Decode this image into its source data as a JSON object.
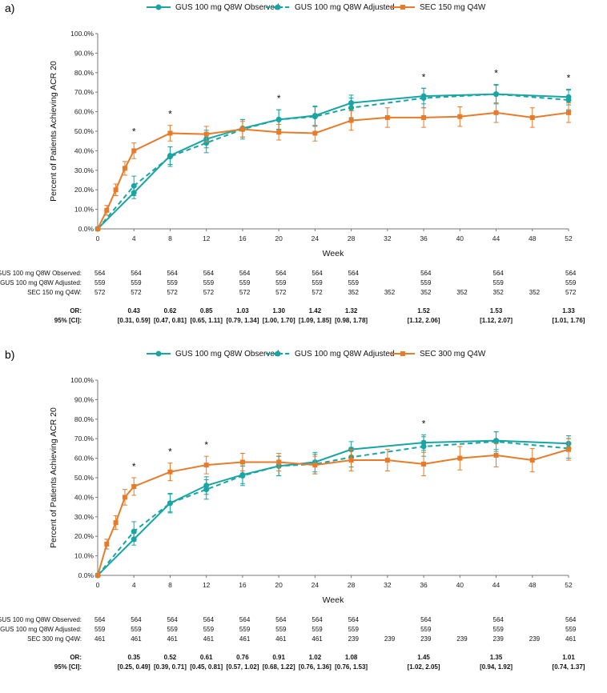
{
  "panels": [
    {
      "letter": "a)",
      "legend": [
        {
          "label": "GUS 100 mg Q8W Observed"
        },
        {
          "label": "GUS 100 mg Q8W Adjusted"
        },
        {
          "label": "SEC 150 mg Q4W"
        }
      ],
      "table_labels": [
        "GUS 100 mg Q8W Observed:",
        "GUS 100 mg Q8W Adjusted:",
        "SEC 150 mg Q4W:"
      ],
      "or_label": "OR:",
      "ci_label": "95% [CI]:",
      "table": {
        "gus_obs_n": [
          "564",
          "564",
          "564",
          "564",
          "564",
          "564",
          "564",
          "564",
          "",
          "564",
          "",
          "564",
          "",
          "564"
        ],
        "gus_adj_n": [
          "559",
          "559",
          "559",
          "559",
          "559",
          "559",
          "559",
          "559",
          "",
          "559",
          "",
          "559",
          "",
          "559"
        ],
        "sec_n": [
          "572",
          "572",
          "572",
          "572",
          "572",
          "572",
          "572",
          "352",
          "352",
          "352",
          "352",
          "352",
          "352",
          "572"
        ],
        "or": [
          "",
          "0.43",
          "0.62",
          "0.85",
          "1.03",
          "1.30",
          "1.42",
          "1.32",
          "",
          "1.52",
          "",
          "1.53",
          "",
          "1.33"
        ],
        "ci": [
          "",
          "[0.31, 0.59]",
          "[0.47, 0.81]",
          "[0.65, 1.11]",
          "[0.79, 1.34]",
          "[1.00, 1.70]",
          "[1.09, 1.85]",
          "[0.98, 1.78]",
          "",
          "[1.12, 2.06]",
          "",
          "[1.12, 2.07]",
          "",
          "[1.01, 1.76]"
        ]
      }
    },
    {
      "letter": "b)",
      "legend": [
        {
          "label": "GUS 100 mg Q8W Observed"
        },
        {
          "label": "GUS 100 mg Q8W Adjusted"
        },
        {
          "label": "SEC 300 mg Q4W"
        }
      ],
      "table_labels": [
        "GUS 100 mg Q8W Observed:",
        "GUS 100 mg Q8W Adjusted:",
        "SEC 300 mg Q4W:"
      ],
      "or_label": "OR:",
      "ci_label": "95% [CI]:",
      "table": {
        "gus_obs_n": [
          "564",
          "564",
          "564",
          "564",
          "564",
          "564",
          "564",
          "564",
          "",
          "564",
          "",
          "564",
          "",
          "564"
        ],
        "gus_adj_n": [
          "559",
          "559",
          "559",
          "559",
          "559",
          "559",
          "559",
          "559",
          "",
          "559",
          "",
          "559",
          "",
          "559"
        ],
        "sec_n": [
          "461",
          "461",
          "461",
          "461",
          "461",
          "461",
          "461",
          "239",
          "239",
          "239",
          "239",
          "239",
          "239",
          "461"
        ],
        "or": [
          "",
          "0.35",
          "0.52",
          "0.61",
          "0.76",
          "0.91",
          "1.02",
          "1.08",
          "",
          "1.45",
          "",
          "1.35",
          "",
          "1.01"
        ],
        "ci": [
          "",
          "[0.25, 0.49]",
          "[0.39, 0.71]",
          "[0.45, 0.81]",
          "[0.57, 1.02]",
          "[0.68, 1.22]",
          "[0.76, 1.36]",
          "[0.76, 1.53]",
          "",
          "[1.02, 2.05]",
          "",
          "[0.94, 1.92]",
          "",
          "[0.74, 1.37]"
        ]
      }
    }
  ],
  "chart_data": [
    {
      "type": "line",
      "xlabel": "Week",
      "ylabel": "Percent of Patients Achieving ACR 20",
      "xlim": [
        0,
        52
      ],
      "x_ticks": [
        0,
        4,
        8,
        12,
        16,
        20,
        24,
        28,
        32,
        36,
        40,
        44,
        48,
        52
      ],
      "y_ticks": [
        "0.0%",
        "10.0%",
        "20.0%",
        "30.0%",
        "40.0%",
        "50.0%",
        "60.0%",
        "70.0%",
        "80.0%",
        "90.0%",
        "100.0%"
      ],
      "ylim": [
        0,
        100
      ],
      "significance_weeks": [
        4,
        8,
        20,
        36,
        44,
        52
      ],
      "series": [
        {
          "name": "GUS 100 mg Q8W Observed",
          "color": "#1aa5a5",
          "dash": false,
          "x": [
            0,
            4,
            8,
            12,
            16,
            20,
            24,
            28,
            36,
            44,
            52
          ],
          "y": [
            0,
            18.5,
            37.5,
            46,
            51.5,
            56,
            58,
            64.5,
            68,
            69,
            67.5
          ],
          "err": [
            0,
            3,
            4.5,
            4.5,
            4.5,
            5,
            5,
            4,
            4,
            4.5,
            4
          ]
        },
        {
          "name": "GUS 100 mg Q8W Adjusted",
          "color": "#1aa5a5",
          "dash": true,
          "x": [
            0,
            4,
            8,
            12,
            16,
            20,
            24,
            28,
            36,
            44,
            52
          ],
          "y": [
            0,
            22,
            37,
            44,
            51,
            56,
            57.5,
            62,
            67,
            69,
            66
          ],
          "err": [
            0,
            5,
            5,
            5,
            5,
            5,
            5,
            5,
            5,
            5,
            5
          ]
        },
        {
          "name": "SEC 150 mg Q4W",
          "color": "#e87b2a",
          "dash": false,
          "x": [
            0,
            1,
            2,
            3,
            4,
            8,
            12,
            16,
            20,
            24,
            28,
            32,
            36,
            40,
            44,
            48,
            52
          ],
          "y": [
            0,
            9.5,
            20,
            31,
            40,
            49,
            48.5,
            51,
            49.5,
            49,
            55.5,
            57,
            57,
            57.5,
            59.5,
            57,
            59.5
          ],
          "err": [
            0,
            2.5,
            3,
            3.5,
            4,
            4,
            4,
            4,
            4,
            4,
            5,
            5,
            5,
            5,
            5,
            5,
            5
          ]
        }
      ]
    },
    {
      "type": "line",
      "xlabel": "Week",
      "ylabel": "Percent of Patients Achieving ACR 20",
      "xlim": [
        0,
        52
      ],
      "x_ticks": [
        0,
        4,
        8,
        12,
        16,
        20,
        24,
        28,
        32,
        36,
        40,
        44,
        48,
        52
      ],
      "y_ticks": [
        "0.0%",
        "10.0%",
        "20.0%",
        "30.0%",
        "40.0%",
        "50.0%",
        "60.0%",
        "70.0%",
        "80.0%",
        "90.0%",
        "100.0%"
      ],
      "ylim": [
        0,
        100
      ],
      "significance_weeks": [
        4,
        8,
        12,
        36
      ],
      "series": [
        {
          "name": "GUS 100 mg Q8W Observed",
          "color": "#1aa5a5",
          "dash": false,
          "x": [
            0,
            4,
            8,
            12,
            16,
            20,
            24,
            28,
            36,
            44,
            52
          ],
          "y": [
            0,
            18.5,
            37,
            46,
            51.5,
            56,
            58,
            64.5,
            68,
            69,
            67.5
          ],
          "err": [
            0,
            3,
            4.5,
            4.5,
            4.5,
            5,
            5,
            4,
            4,
            4.5,
            4
          ]
        },
        {
          "name": "GUS 100 mg Q8W Adjusted",
          "color": "#1aa5a5",
          "dash": true,
          "x": [
            0,
            4,
            8,
            12,
            16,
            20,
            24,
            28,
            36,
            44,
            52
          ],
          "y": [
            0,
            22.5,
            37,
            44,
            51,
            56,
            57,
            60.5,
            66,
            68.5,
            65
          ],
          "err": [
            0,
            5,
            5,
            5,
            5,
            5,
            5,
            5,
            5,
            5,
            5
          ]
        },
        {
          "name": "SEC 300 mg Q4W",
          "color": "#e87b2a",
          "dash": false,
          "x": [
            0,
            1,
            2,
            3,
            4,
            8,
            12,
            16,
            20,
            24,
            28,
            32,
            36,
            40,
            44,
            48,
            52
          ],
          "y": [
            0,
            16,
            27,
            40,
            45.5,
            53,
            56.5,
            58,
            58,
            56.5,
            59,
            59,
            57,
            60,
            61.5,
            59,
            64.5
          ],
          "err": [
            0,
            2.5,
            3.5,
            4,
            4.5,
            4.5,
            4.5,
            4.5,
            4.5,
            4.5,
            5.5,
            5.5,
            6,
            6,
            6,
            6,
            5.5
          ]
        }
      ]
    }
  ]
}
